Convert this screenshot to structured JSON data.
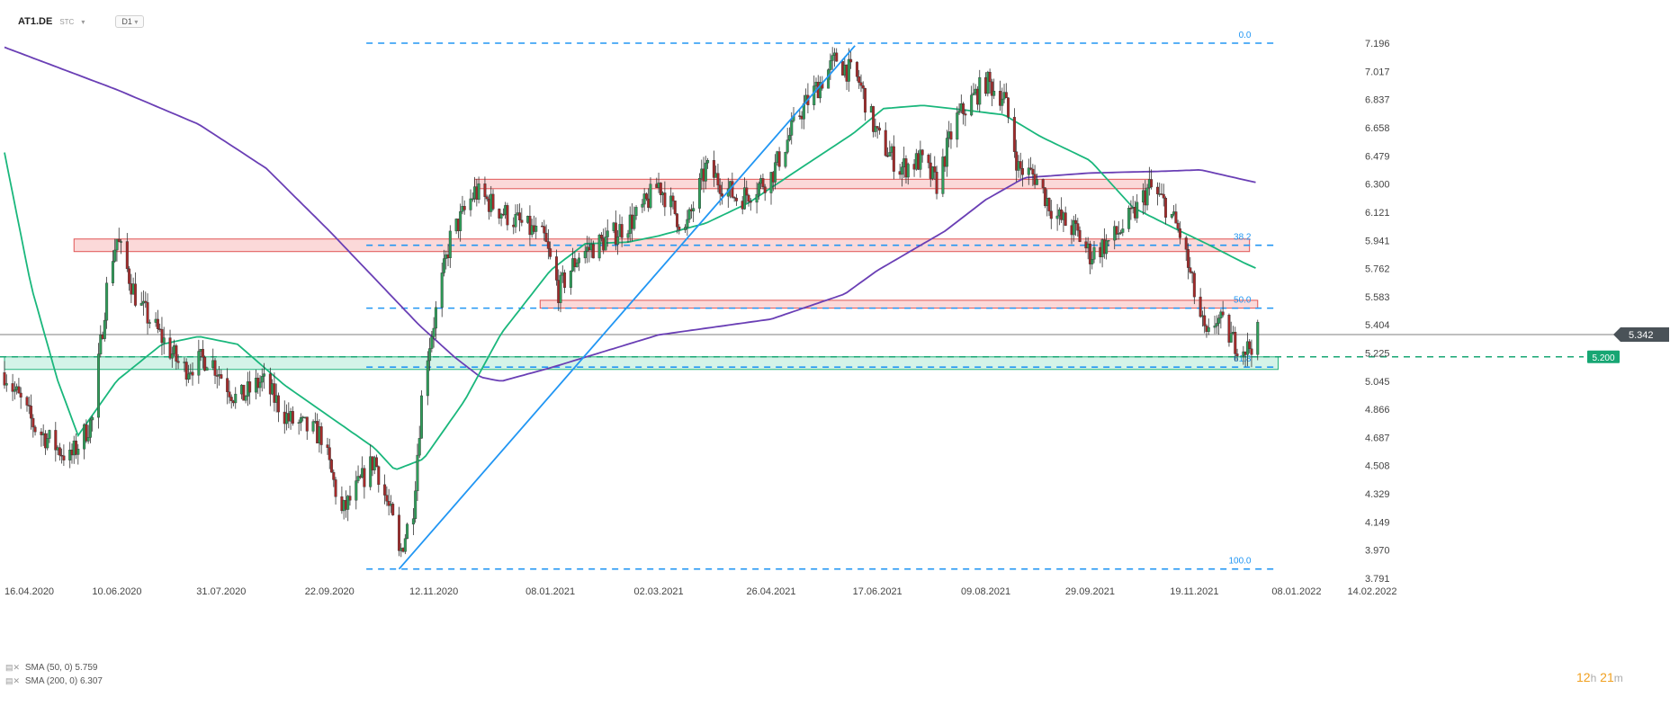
{
  "header": {
    "symbol": "AT1.DE",
    "source": "STC",
    "interval": "D1"
  },
  "legend": [
    {
      "label": "SMA (50, 0)",
      "value": "5.759",
      "color": "#1ab77c"
    },
    {
      "label": "SMA (200, 0)",
      "value": "6.307",
      "color": "#6a3fb5"
    }
  ],
  "countdown": {
    "hours": "12",
    "h_unit": "h",
    "minutes": "21",
    "m_unit": "m"
  },
  "colors": {
    "up": "#2f9e5a",
    "down": "#a52a2a",
    "sma50": "#1ab77c",
    "sma200": "#6a3fb5",
    "fib": "#2196f3",
    "trend": "#2196f3",
    "zone_red": "#e05555",
    "zone_green": "#20b27a",
    "current_tag": "#4a5258",
    "support_tag": "#17a673"
  },
  "chart_data": {
    "type": "candlestick",
    "ylim": [
      3.791,
      7.196
    ],
    "y_ticks": [
      "7.196",
      "7.017",
      "6.837",
      "6.658",
      "6.479",
      "6.300",
      "6.121",
      "5.941",
      "5.762",
      "5.583",
      "5.404",
      "5.225",
      "5.045",
      "4.866",
      "4.687",
      "4.508",
      "4.329",
      "4.149",
      "3.970",
      "3.791"
    ],
    "x_ticks": [
      "16.04.2020",
      "10.06.2020",
      "31.07.2020",
      "22.09.2020",
      "12.11.2020",
      "08.01.2021",
      "02.03.2021",
      "26.04.2021",
      "17.06.2021",
      "09.08.2021",
      "29.09.2021",
      "19.11.2021",
      "08.01.2022",
      "14.02.2022"
    ],
    "price_anchors": [
      [
        "16.04.2020",
        5.1
      ],
      [
        "01.05.2020",
        4.75
      ],
      [
        "18.05.2020",
        4.55
      ],
      [
        "29.05.2020",
        4.8
      ],
      [
        "06.06.2020",
        5.75
      ],
      [
        "10.06.2020",
        5.95
      ],
      [
        "20.06.2020",
        5.55
      ],
      [
        "02.07.2020",
        5.32
      ],
      [
        "12.07.2020",
        5.12
      ],
      [
        "25.07.2020",
        5.2
      ],
      [
        "08.08.2020",
        4.92
      ],
      [
        "20.08.2020",
        5.05
      ],
      [
        "02.09.2020",
        4.8
      ],
      [
        "18.09.2020",
        4.7
      ],
      [
        "28.09.2020",
        4.2
      ],
      [
        "14.10.2020",
        4.55
      ],
      [
        "24.10.2020",
        4.1
      ],
      [
        "26.10.2020",
        3.93
      ],
      [
        "02.11.2020",
        4.25
      ],
      [
        "07.11.2020",
        5.1
      ],
      [
        "14.11.2020",
        5.55
      ],
      [
        "20.11.2020",
        5.95
      ],
      [
        "02.12.2020",
        6.25
      ],
      [
        "18.12.2020",
        6.1
      ],
      [
        "05.01.2021",
        5.95
      ],
      [
        "12.01.2021",
        5.62
      ],
      [
        "22.01.2021",
        5.85
      ],
      [
        "05.02.2021",
        5.95
      ],
      [
        "20.02.2021",
        6.1
      ],
      [
        "02.03.2021",
        6.3
      ],
      [
        "15.03.2021",
        6.0
      ],
      [
        "25.03.2021",
        6.4
      ],
      [
        "10.04.2021",
        6.2
      ],
      [
        "26.04.2021",
        6.35
      ],
      [
        "10.05.2021",
        6.75
      ],
      [
        "28.05.2021",
        7.1
      ],
      [
        "08.06.2021",
        6.95
      ],
      [
        "17.06.2021",
        6.6
      ],
      [
        "28.06.2021",
        6.4
      ],
      [
        "08.07.2021",
        6.45
      ],
      [
        "16.07.2021",
        6.3
      ],
      [
        "25.07.2021",
        6.7
      ],
      [
        "09.08.2021",
        6.95
      ],
      [
        "18.08.2021",
        6.85
      ],
      [
        "25.08.2021",
        6.4
      ],
      [
        "02.09.2021",
        6.35
      ],
      [
        "12.09.2021",
        6.1
      ],
      [
        "22.09.2021",
        6.0
      ],
      [
        "29.09.2021",
        5.85
      ],
      [
        "10.10.2021",
        5.95
      ],
      [
        "20.10.2021",
        6.1
      ],
      [
        "28.10.2021",
        6.28
      ],
      [
        "06.11.2021",
        6.15
      ],
      [
        "13.11.2021",
        5.95
      ],
      [
        "19.11.2021",
        5.6
      ],
      [
        "25.11.2021",
        5.3
      ],
      [
        "30.11.2021",
        5.45
      ],
      [
        "08.12.2021",
        5.3
      ],
      [
        "15.12.2021",
        5.25
      ],
      [
        "20.12.2021",
        5.342
      ]
    ],
    "sma50_anchors": [
      [
        "16.04.2020",
        6.5
      ],
      [
        "29.04.2020",
        5.65
      ],
      [
        "12.05.2020",
        5.05
      ],
      [
        "22.05.2020",
        4.7
      ],
      [
        "10.06.2020",
        5.05
      ],
      [
        "02.07.2020",
        5.28
      ],
      [
        "20.07.2020",
        5.33
      ],
      [
        "08.08.2020",
        5.28
      ],
      [
        "31.08.2020",
        5.02
      ],
      [
        "22.09.2020",
        4.82
      ],
      [
        "14.10.2020",
        4.62
      ],
      [
        "24.10.2020",
        4.48
      ],
      [
        "07.11.2020",
        4.55
      ],
      [
        "27.11.2020",
        4.92
      ],
      [
        "15.12.2020",
        5.35
      ],
      [
        "08.01.2021",
        5.75
      ],
      [
        "25.01.2021",
        5.92
      ],
      [
        "15.02.2021",
        5.93
      ],
      [
        "02.03.2021",
        5.97
      ],
      [
        "25.03.2021",
        6.05
      ],
      [
        "15.04.2021",
        6.18
      ],
      [
        "08.05.2021",
        6.38
      ],
      [
        "05.06.2021",
        6.62
      ],
      [
        "20.06.2021",
        6.78
      ],
      [
        "09.07.2021",
        6.8
      ],
      [
        "30.07.2021",
        6.77
      ],
      [
        "18.08.2021",
        6.74
      ],
      [
        "05.09.2021",
        6.6
      ],
      [
        "29.09.2021",
        6.45
      ],
      [
        "20.10.2021",
        6.15
      ],
      [
        "09.11.2021",
        6.02
      ],
      [
        "25.11.2021",
        5.92
      ],
      [
        "13.12.2021",
        5.8
      ],
      [
        "20.12.2021",
        5.759
      ]
    ],
    "sma200_anchors": [
      [
        "16.04.2020",
        7.17
      ],
      [
        "10.06.2020",
        6.9
      ],
      [
        "20.07.2020",
        6.68
      ],
      [
        "22.08.2020",
        6.4
      ],
      [
        "22.09.2020",
        6.0
      ],
      [
        "14.10.2020",
        5.7
      ],
      [
        "05.11.2020",
        5.4
      ],
      [
        "22.11.2020",
        5.2
      ],
      [
        "05.12.2020",
        5.07
      ],
      [
        "15.12.2020",
        5.045
      ],
      [
        "08.01.2021",
        5.13
      ],
      [
        "02.03.2021",
        5.34
      ],
      [
        "26.04.2021",
        5.44
      ],
      [
        "01.06.2021",
        5.6
      ],
      [
        "17.06.2021",
        5.75
      ],
      [
        "20.07.2021",
        6.0
      ],
      [
        "09.08.2021",
        6.2
      ],
      [
        "28.08.2021",
        6.34
      ],
      [
        "29.09.2021",
        6.37
      ],
      [
        "01.11.2021",
        6.38
      ],
      [
        "22.11.2021",
        6.39
      ],
      [
        "20.12.2021",
        6.307
      ]
    ],
    "fib_levels": [
      {
        "label": "0.0",
        "value": 7.196
      },
      {
        "label": "38.2",
        "value": 5.91
      },
      {
        "label": "50.0",
        "value": 5.51
      },
      {
        "label": "61.8",
        "value": 5.135
      },
      {
        "label": "100.0",
        "value": 3.85
      }
    ],
    "zones": [
      {
        "kind": "resistance",
        "from": "02.12.2020",
        "to": "28.10.2021",
        "low": 6.27,
        "high": 6.33
      },
      {
        "kind": "resistance",
        "from": "20.05.2020",
        "to": "16.12.2021",
        "low": 5.87,
        "high": 5.95
      },
      {
        "kind": "resistance",
        "from": "03.01.2021",
        "to": "20.12.2021",
        "low": 5.51,
        "high": 5.56
      },
      {
        "kind": "support",
        "from": "16.04.2020",
        "to": "30.12.2021",
        "low": 5.12,
        "high": 5.2
      }
    ],
    "trendline": {
      "from": [
        "26.10.2020",
        3.85
      ],
      "to": [
        "06.06.2021",
        7.18
      ]
    },
    "current_price": {
      "label": "5.342",
      "value": 5.342
    },
    "support_price": {
      "label": "5.200",
      "value": 5.2
    }
  }
}
